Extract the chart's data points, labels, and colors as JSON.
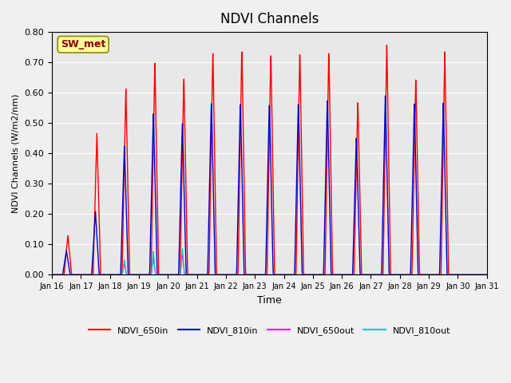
{
  "title": "NDVI Channels",
  "xlabel": "Time",
  "ylabel": "NDVI Channels (W/m2/nm)",
  "ylim": [
    0.0,
    0.8
  ],
  "yticks": [
    0.0,
    0.1,
    0.2,
    0.3,
    0.4,
    0.5,
    0.6,
    0.7,
    0.8
  ],
  "station_label": "SW_met",
  "background_color": "#e8e8e8",
  "fig_facecolor": "#f0f0f0",
  "colors": {
    "650in": "#ff0000",
    "810in": "#0000cc",
    "650out": "#ff00ff",
    "810out": "#00cccc"
  },
  "legend_labels": [
    "NDVI_650in",
    "NDVI_810in",
    "NDVI_650out",
    "NDVI_810out"
  ],
  "xtick_labels": [
    "Jan 16",
    "Jan 17",
    "Jan 18",
    "Jan 19",
    "Jan 20",
    "Jan 21",
    "Jan 22",
    "Jan 23",
    "Jan 24",
    "Jan 25",
    "Jan 26",
    "Jan 27",
    "Jan 28",
    "Jan 29",
    "Jan 30",
    "Jan 31"
  ],
  "day_peaks_650in": [
    0.13,
    0.47,
    0.62,
    0.71,
    0.66,
    0.75,
    0.76,
    0.75,
    0.75,
    0.75,
    0.58,
    0.77,
    0.65,
    0.74,
    0.0
  ],
  "day_peaks_810in": [
    0.08,
    0.21,
    0.43,
    0.54,
    0.51,
    0.58,
    0.58,
    0.58,
    0.58,
    0.59,
    0.46,
    0.6,
    0.57,
    0.57,
    0.0
  ],
  "day_peaks_650out": [
    0.0,
    0.0,
    0.04,
    0.06,
    0.07,
    0.0,
    0.0,
    0.0,
    0.0,
    0.0,
    0.0,
    0.0,
    0.0,
    0.0,
    0.0
  ],
  "day_peaks_810out": [
    0.0,
    0.0,
    0.05,
    0.08,
    0.09,
    0.0,
    0.0,
    0.0,
    0.0,
    0.0,
    0.0,
    0.0,
    0.0,
    0.0,
    0.0
  ]
}
